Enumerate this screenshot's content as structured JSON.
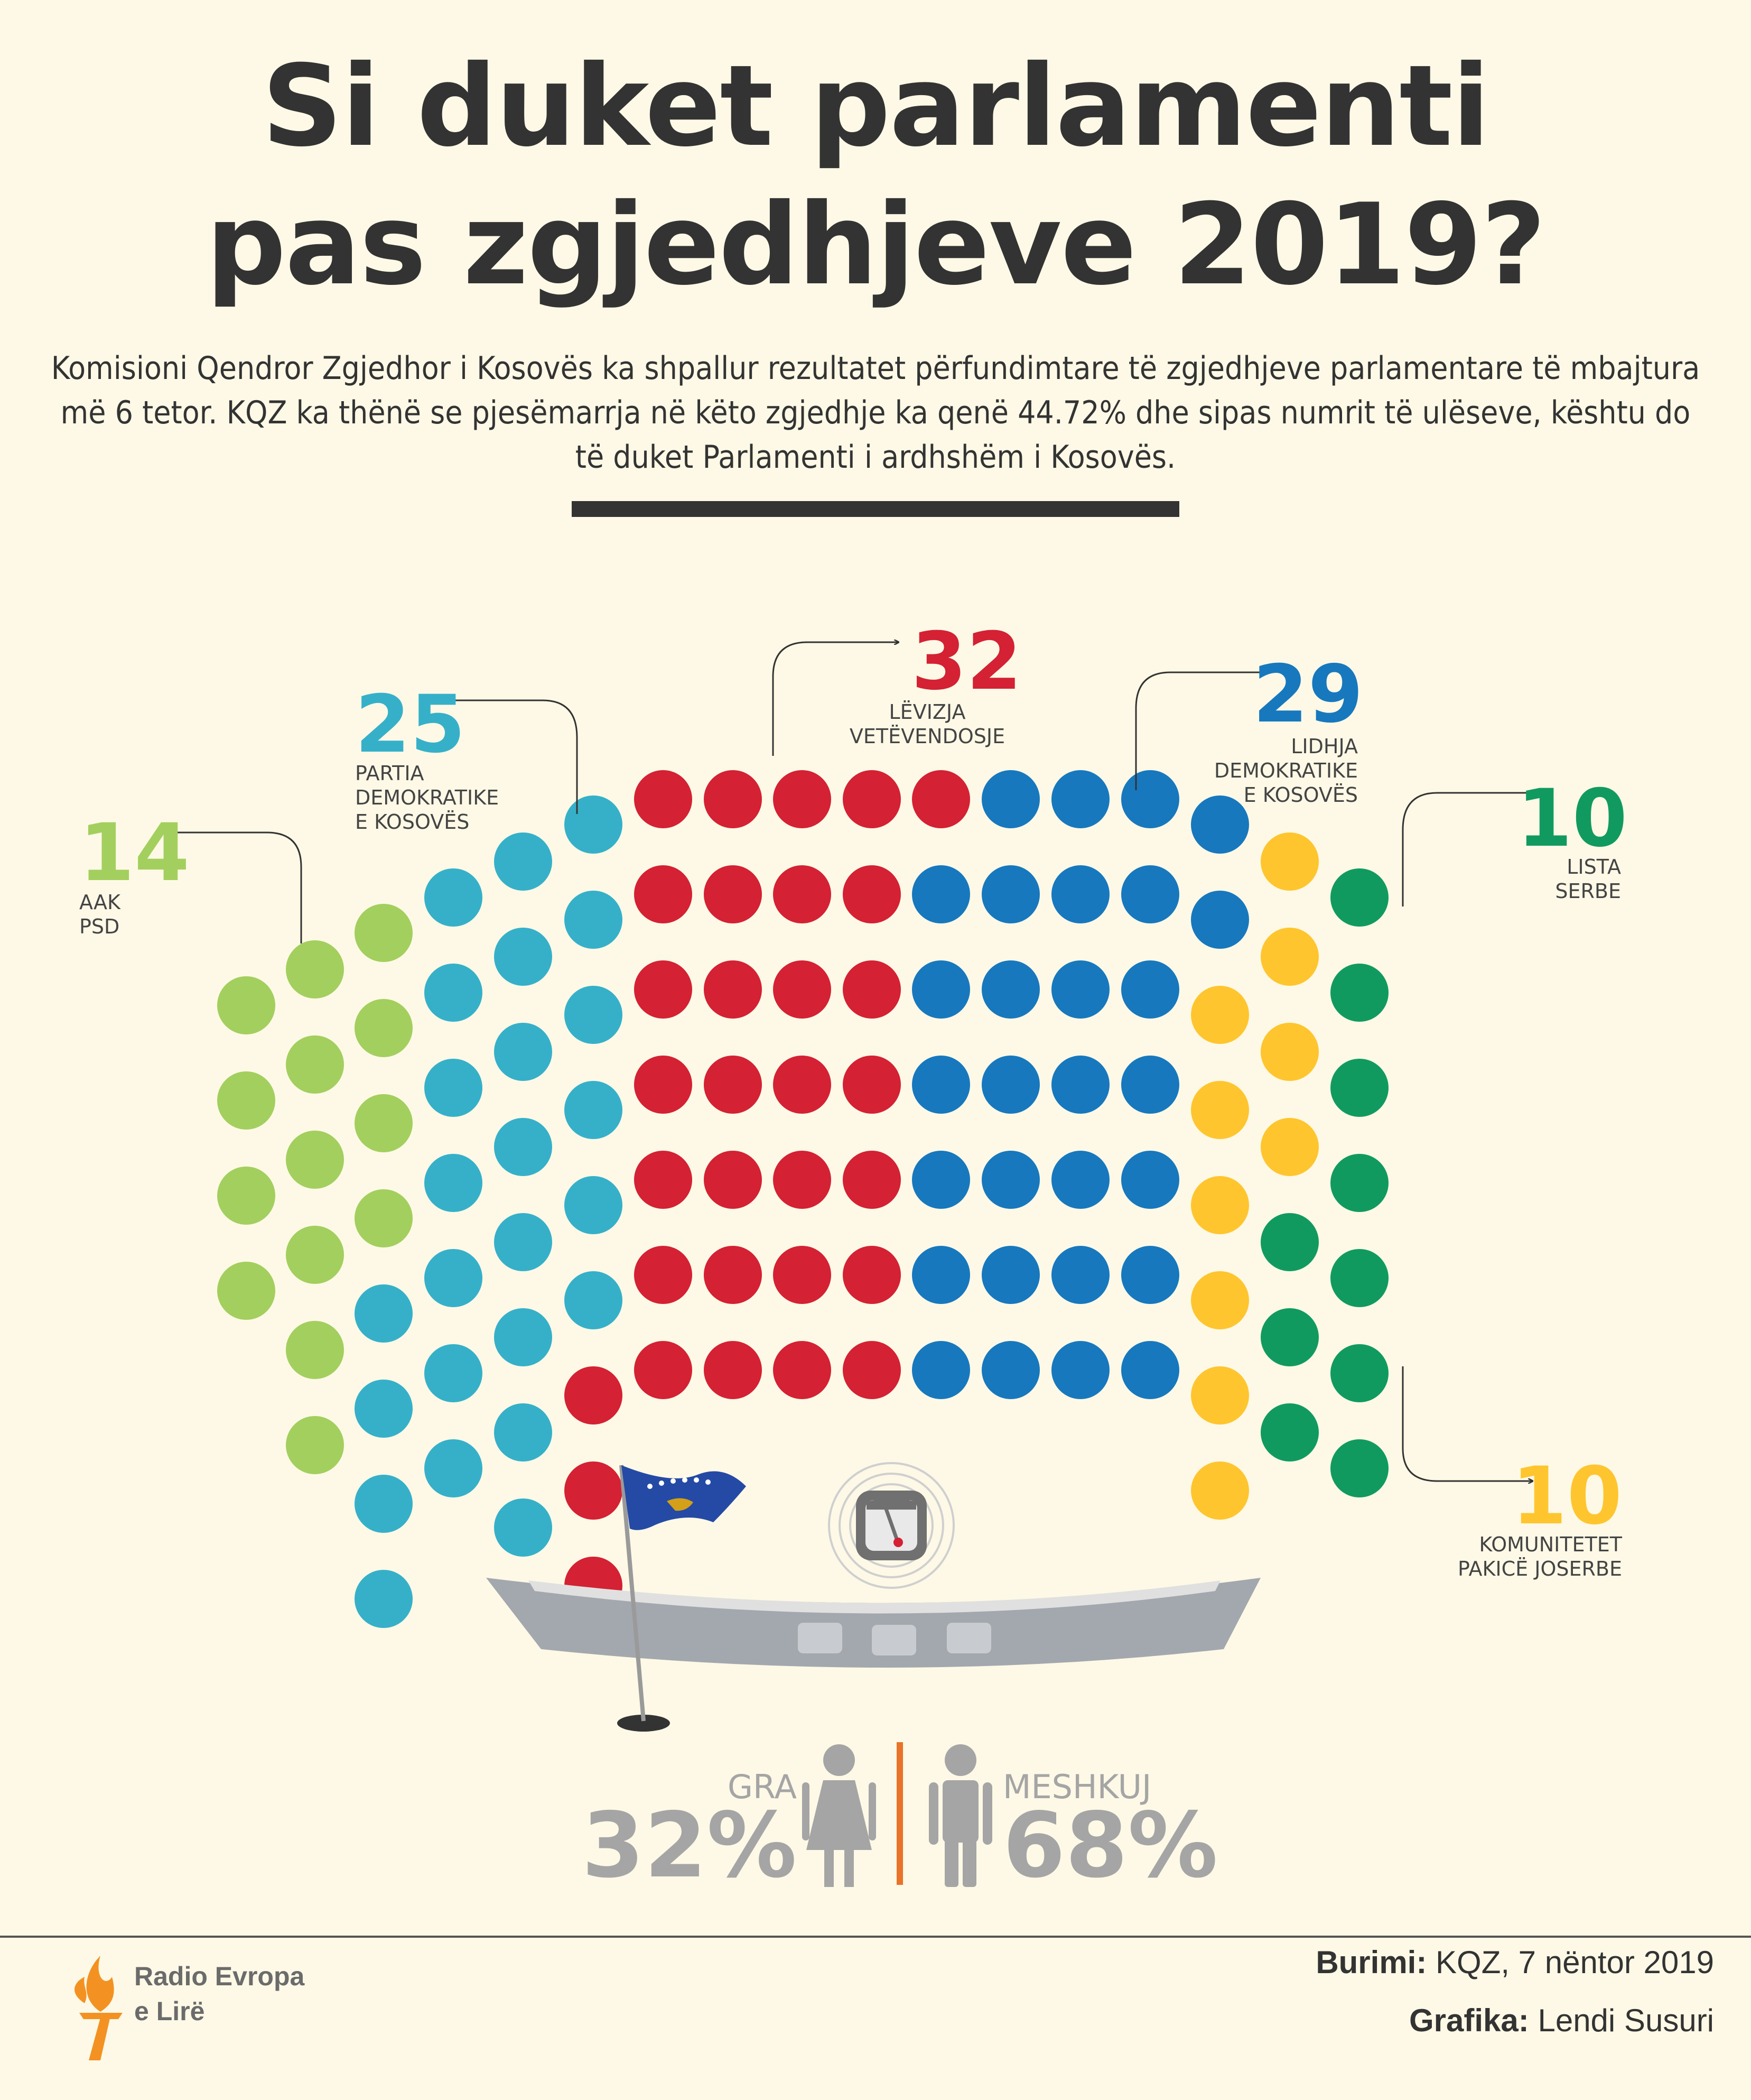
{
  "header": {
    "title_line1": "Si duket parlamenti",
    "title_line2": "pas zgjedhjeve 2019?",
    "intro": "Komisioni Qendror Zgjedhor i Kosovës ka shpallur rezultatet përfundimtare të zgjedhjeve parlamentare të mbajtura më 6 tetor. KQZ ka thënë se pjesëmarrja në këto zgjedhje ka qenë 44.72% dhe sipas numrit të ulëseve, kështu do të duket Parlamenti i ardhshëm i Kosovës."
  },
  "chart_data": {
    "type": "parliament",
    "total_seats": 120,
    "parties": [
      {
        "name_lines": [
          "AAK",
          "PSD"
        ],
        "seats": 14,
        "color": "#a3cf5e"
      },
      {
        "name_lines": [
          "PARTIA",
          "DEMOKRATIKE",
          "E KOSOVËS"
        ],
        "seats": 25,
        "color": "#36b0c9"
      },
      {
        "name_lines": [
          "LËVIZJA",
          "VETËVENDOSJE"
        ],
        "seats": 32,
        "color": "#d42133"
      },
      {
        "name_lines": [
          "LIDHJA",
          "DEMOKRATIKE",
          "E KOSOVËS"
        ],
        "seats": 29,
        "color": "#1778be"
      },
      {
        "name_lines": [
          "KOMUNITETET",
          "PAKICË JOSERBE"
        ],
        "seats": 10,
        "color": "#fec52e"
      },
      {
        "name_lines": [
          "LISTA",
          "SERBE"
        ],
        "seats": 10,
        "color": "#119a5f"
      }
    ]
  },
  "gender": {
    "women_label": "GRA",
    "women_value": "32%",
    "men_label": "MESHKUJ",
    "men_value": "68%",
    "divider_color": "#e8732a",
    "figure_color": "#a5a5a5"
  },
  "footer": {
    "logo_line1": "Radio Evropa",
    "logo_line2": "e Lirë",
    "logo_color": "#f39222",
    "source_label": "Burimi:",
    "source_value": "KQZ, 7 nëntor 2019",
    "graphic_label": "Grafika:",
    "graphic_value": "Lendi Susuri"
  }
}
